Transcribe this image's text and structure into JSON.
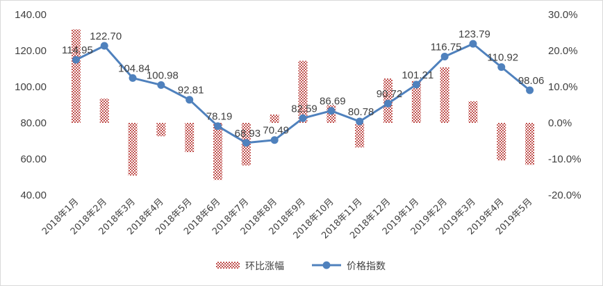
{
  "chart_data": {
    "type": "bar+line",
    "title": "",
    "categories": [
      "2018年1月",
      "2018年2月",
      "2018年3月",
      "2018年4月",
      "2018年5月",
      "2018年6月",
      "2018年7月",
      "2018年8月",
      "2018年9月",
      "2018年10月",
      "2018年11月",
      "2018年12月",
      "2019年1月",
      "2019年2月",
      "2019年3月",
      "2019年4月",
      "2019年5月"
    ],
    "series": [
      {
        "name": "环比涨幅",
        "type": "bar",
        "axis": "right",
        "pattern": "checkered",
        "color": "#c0504d",
        "values": [
          25.9,
          6.7,
          -14.6,
          -3.7,
          -8.1,
          -15.8,
          -11.8,
          2.3,
          17.2,
          4.9,
          -6.8,
          12.3,
          11.6,
          15.4,
          6.0,
          -10.4,
          -11.6
        ]
      },
      {
        "name": "价格指数",
        "type": "line",
        "axis": "left",
        "color": "#4f81bd",
        "values": [
          114.95,
          122.7,
          104.84,
          100.98,
          92.81,
          78.19,
          68.93,
          70.49,
          82.59,
          86.69,
          80.78,
          90.72,
          101.21,
          116.75,
          123.79,
          110.92,
          98.06
        ],
        "labels": [
          "114.95",
          "122.70",
          "104.84",
          "100.98",
          "92.81",
          "78.19",
          "68.93",
          "70.49",
          "82.59",
          "86.69",
          "80.78",
          "90.72",
          "101.21",
          "116.75",
          "123.79",
          "110.92",
          "98.06"
        ]
      }
    ],
    "y_left": {
      "range": [
        40,
        140
      ],
      "ticks": [
        "40.00",
        "60.00",
        "80.00",
        "100.00",
        "120.00",
        "140.00"
      ]
    },
    "y_right": {
      "range": [
        -20,
        30
      ],
      "ticks": [
        "-20.0%",
        "-10.0%",
        "0.0%",
        "10.0%",
        "20.0%",
        "30.0%"
      ]
    },
    "grid": false,
    "legend_position": "bottom"
  }
}
